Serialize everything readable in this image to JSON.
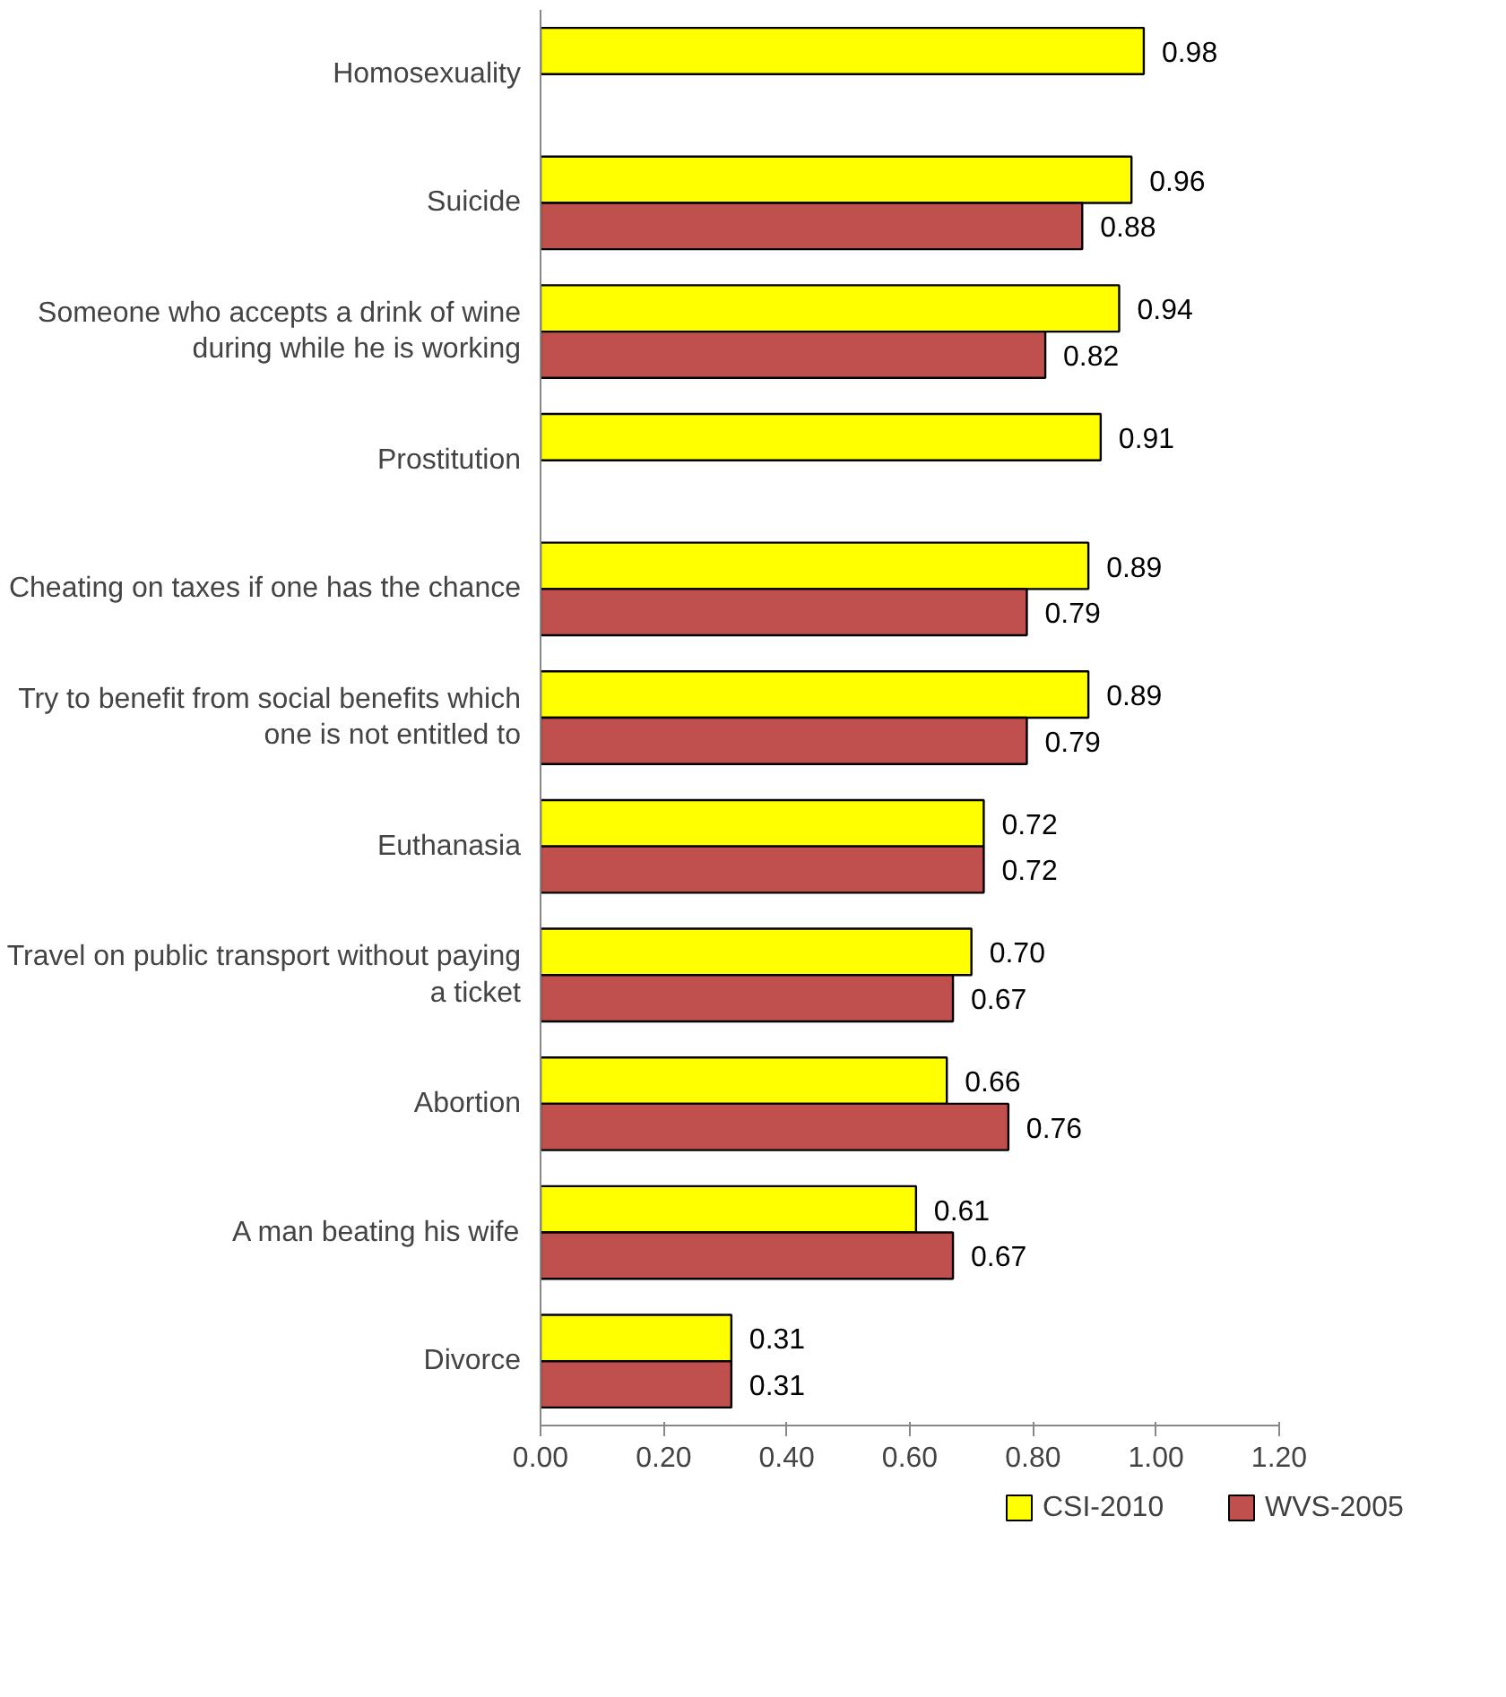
{
  "chart_data": {
    "type": "bar",
    "orientation": "horizontal",
    "categories": [
      "Homosexuality",
      "Suicide",
      "Someone who accepts a drink of wine during while he is working",
      "Prostitution",
      "Cheating on taxes if one has the chance",
      "Try to benefit from social benefits which one is not entitled to",
      "Euthanasia",
      "Travel on public transport without paying a ticket",
      "Abortion",
      "A man beating his wife",
      "Divorce"
    ],
    "series": [
      {
        "name": "CSI-2010",
        "color": "#ffff00",
        "values": [
          0.98,
          0.96,
          0.94,
          0.91,
          0.89,
          0.89,
          0.72,
          0.7,
          0.66,
          0.61,
          0.31
        ],
        "value_labels": [
          "0.98",
          "0.96",
          "0.94",
          "0.91",
          "0.89",
          "0.89",
          "0.72",
          "0.70",
          "0.66",
          "0.61",
          "0.31"
        ]
      },
      {
        "name": "WVS-2005",
        "color": "#c0504d",
        "values": [
          null,
          0.88,
          0.82,
          null,
          0.79,
          0.79,
          0.72,
          0.67,
          0.76,
          0.67,
          0.31
        ],
        "value_labels": [
          null,
          "0.88",
          "0.82",
          null,
          "0.79",
          "0.79",
          "0.72",
          "0.67",
          "0.76",
          "0.67",
          "0.31"
        ]
      }
    ],
    "xlim": [
      0,
      1.2
    ],
    "xticks": [
      {
        "value": 0,
        "label": "0.00"
      },
      {
        "value": 0.2,
        "label": "0.20"
      },
      {
        "value": 0.4,
        "label": "0.40"
      },
      {
        "value": 0.6,
        "label": "0.60"
      },
      {
        "value": 0.8,
        "label": "0.80"
      },
      {
        "value": 1.0,
        "label": "1.00"
      },
      {
        "value": 1.2,
        "label": "1.20"
      }
    ],
    "grid": false,
    "legend": "bottom"
  }
}
